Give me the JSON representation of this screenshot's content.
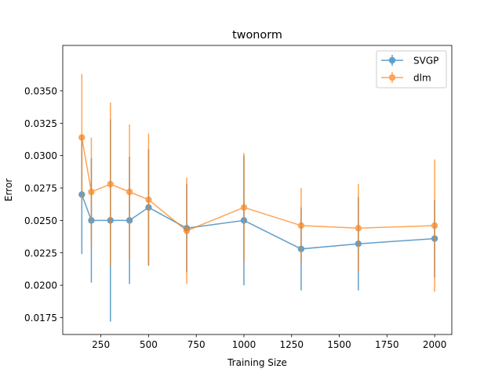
{
  "chart_data": {
    "type": "line",
    "title": "twonorm",
    "xlabel": "Training Size",
    "ylabel": "Error",
    "xlim": [
      50,
      2090
    ],
    "ylim": [
      0.0162,
      0.0385
    ],
    "xticks": [
      250,
      500,
      750,
      1000,
      1250,
      1500,
      1750,
      2000
    ],
    "xtick_labels": [
      "250",
      "500",
      "750",
      "1000",
      "1250",
      "1500",
      "1750",
      "2000"
    ],
    "yticks": [
      0.0175,
      0.02,
      0.0225,
      0.025,
      0.0275,
      0.03,
      0.0325,
      0.035
    ],
    "ytick_labels": [
      "0.0175",
      "0.0200",
      "0.0225",
      "0.0250",
      "0.0275",
      "0.0300",
      "0.0325",
      "0.0350"
    ],
    "grid": false,
    "legend_position": "top-right",
    "x": [
      150,
      200,
      300,
      400,
      500,
      700,
      1000,
      1300,
      1600,
      2000
    ],
    "series": [
      {
        "name": "SVGP",
        "color": "#1f77b4",
        "values": [
          0.027,
          0.025,
          0.025,
          0.025,
          0.026,
          0.0244,
          0.025,
          0.0228,
          0.0232,
          0.0236
        ],
        "errors": [
          0.0046,
          0.0048,
          0.0078,
          0.0049,
          0.0045,
          0.0034,
          0.005,
          0.0032,
          0.0036,
          0.003
        ]
      },
      {
        "name": "dlm",
        "color": "#ff7f0e",
        "values": [
          0.0314,
          0.0272,
          0.0278,
          0.0272,
          0.0266,
          0.0242,
          0.026,
          0.0246,
          0.0244,
          0.0246
        ],
        "errors": [
          0.0049,
          0.0042,
          0.0063,
          0.0052,
          0.0051,
          0.0041,
          0.0042,
          0.0029,
          0.0034,
          0.0051
        ]
      }
    ]
  }
}
